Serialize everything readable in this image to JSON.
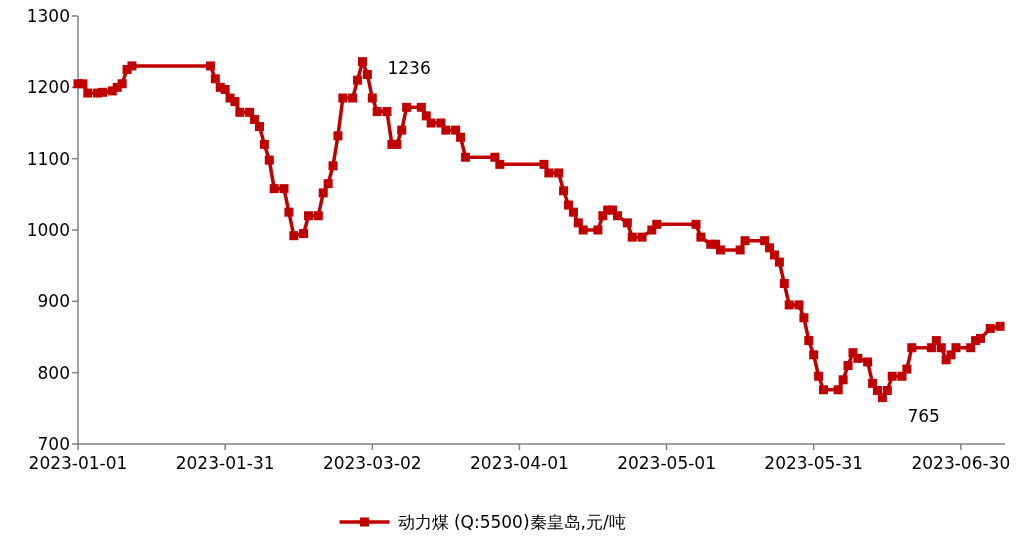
{
  "chart_data": {
    "type": "line",
    "x": [
      "2023-01-01",
      "2023-01-02",
      "2023-01-03",
      "2023-01-05",
      "2023-01-06",
      "2023-01-08",
      "2023-01-09",
      "2023-01-10",
      "2023-01-11",
      "2023-01-12",
      "2023-01-28",
      "2023-01-29",
      "2023-01-30",
      "2023-01-31",
      "2023-02-01",
      "2023-02-02",
      "2023-02-03",
      "2023-02-05",
      "2023-02-06",
      "2023-02-07",
      "2023-02-08",
      "2023-02-09",
      "2023-02-10",
      "2023-02-12",
      "2023-02-13",
      "2023-02-14",
      "2023-02-16",
      "2023-02-17",
      "2023-02-19",
      "2023-02-20",
      "2023-02-21",
      "2023-02-22",
      "2023-02-23",
      "2023-02-24",
      "2023-02-26",
      "2023-02-27",
      "2023-02-28",
      "2023-03-01",
      "2023-03-02",
      "2023-03-03",
      "2023-03-05",
      "2023-03-06",
      "2023-03-07",
      "2023-03-08",
      "2023-03-09",
      "2023-03-12",
      "2023-03-13",
      "2023-03-14",
      "2023-03-16",
      "2023-03-17",
      "2023-03-19",
      "2023-03-20",
      "2023-03-21",
      "2023-03-27",
      "2023-03-28",
      "2023-04-06",
      "2023-04-07",
      "2023-04-09",
      "2023-04-10",
      "2023-04-11",
      "2023-04-12",
      "2023-04-13",
      "2023-04-14",
      "2023-04-17",
      "2023-04-18",
      "2023-04-19",
      "2023-04-20",
      "2023-04-21",
      "2023-04-23",
      "2023-04-24",
      "2023-04-26",
      "2023-04-28",
      "2023-04-29",
      "2023-05-07",
      "2023-05-08",
      "2023-05-10",
      "2023-05-11",
      "2023-05-12",
      "2023-05-16",
      "2023-05-17",
      "2023-05-21",
      "2023-05-22",
      "2023-05-23",
      "2023-05-24",
      "2023-05-25",
      "2023-05-26",
      "2023-05-28",
      "2023-05-29",
      "2023-05-30",
      "2023-05-31",
      "2023-06-01",
      "2023-06-02",
      "2023-06-05",
      "2023-06-06",
      "2023-06-07",
      "2023-06-08",
      "2023-06-09",
      "2023-06-11",
      "2023-06-12",
      "2023-06-13",
      "2023-06-14",
      "2023-06-15",
      "2023-06-16",
      "2023-06-18",
      "2023-06-19",
      "2023-06-20",
      "2023-06-24",
      "2023-06-25",
      "2023-06-26",
      "2023-06-27",
      "2023-06-28",
      "2023-06-29",
      "2023-07-02",
      "2023-07-03",
      "2023-07-04",
      "2023-07-06",
      "2023-07-08"
    ],
    "series": [
      {
        "name": "动力煤 (Q:5500)秦皇岛,元/吨",
        "color": "#c00000",
        "values": [
          1205,
          1205,
          1192,
          1192,
          1193,
          1195,
          1200,
          1205,
          1225,
          1230,
          1230,
          1212,
          1200,
          1197,
          1185,
          1180,
          1165,
          1165,
          1155,
          1145,
          1120,
          1098,
          1058,
          1058,
          1025,
          992,
          995,
          1020,
          1020,
          1052,
          1065,
          1090,
          1132,
          1185,
          1185,
          1210,
          1236,
          1218,
          1185,
          1166,
          1166,
          1120,
          1120,
          1140,
          1172,
          1172,
          1160,
          1150,
          1150,
          1140,
          1140,
          1130,
          1102,
          1102,
          1092,
          1092,
          1080,
          1080,
          1055,
          1035,
          1025,
          1010,
          1000,
          1000,
          1020,
          1028,
          1028,
          1020,
          1010,
          990,
          990,
          1000,
          1008,
          1008,
          990,
          980,
          980,
          972,
          972,
          985,
          985,
          975,
          965,
          955,
          925,
          895,
          895,
          877,
          845,
          825,
          795,
          776,
          776,
          790,
          810,
          828,
          820,
          815,
          785,
          775,
          765,
          775,
          795,
          795,
          805,
          835,
          835,
          845,
          835,
          818,
          825,
          835,
          835,
          845,
          848,
          862,
          865
        ]
      }
    ],
    "xlim": [
      "2023-01-01",
      "2023-07-09"
    ],
    "xticks": [
      "2023-01-01",
      "2023-01-31",
      "2023-03-02",
      "2023-04-01",
      "2023-05-01",
      "2023-05-31",
      "2023-06-30"
    ],
    "ylim": [
      700,
      1300
    ],
    "yticks": [
      700,
      800,
      900,
      1000,
      1100,
      1200,
      1300
    ],
    "annotations": [
      {
        "text": "1236",
        "x": "2023-02-28",
        "y": 1236
      },
      {
        "text": "765",
        "x": "2023-06-14",
        "y": 765
      }
    ],
    "marker": "square",
    "line_style": "solid",
    "legend": "bottom",
    "grid": false
  }
}
